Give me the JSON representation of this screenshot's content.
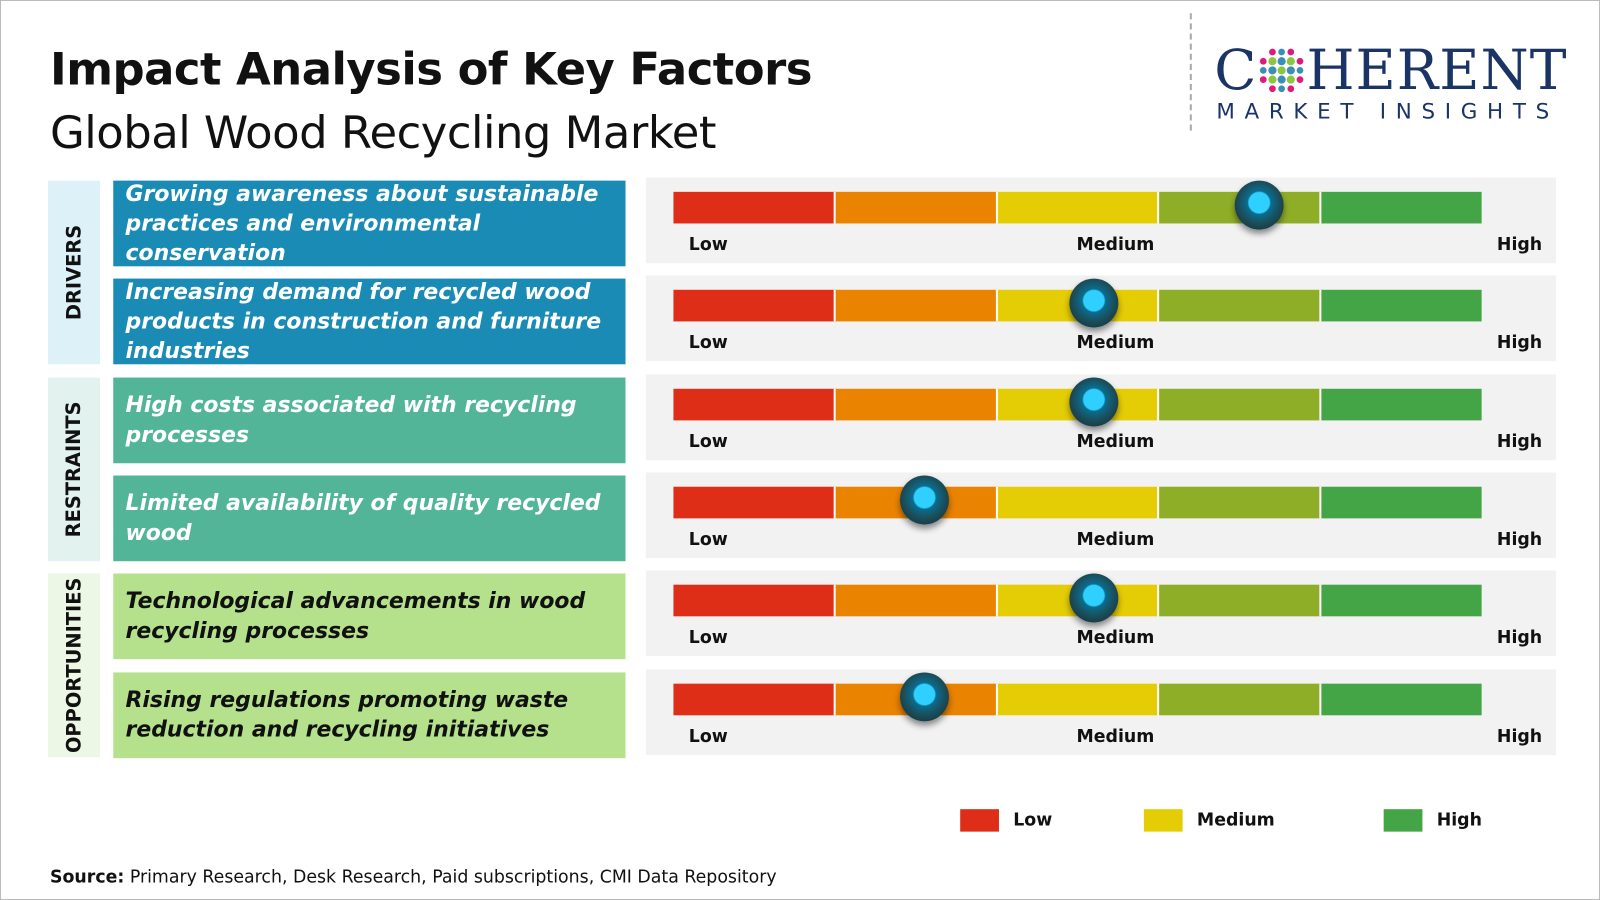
{
  "title": "Impact Analysis of Key Factors",
  "subtitle": "Global Wood Recycling Market",
  "logo": {
    "top": "COHERENT",
    "bottom": "MARKET INSIGHTS"
  },
  "chart_data": {
    "type": "gauge-table",
    "scale_labels": [
      "Low",
      "Medium",
      "High"
    ],
    "segment_colors": [
      "#de2e18",
      "#ea8300",
      "#e5cd06",
      "#8fae27",
      "#43a546"
    ],
    "categories": [
      {
        "name": "DRIVERS",
        "bg": "#ddf1f9",
        "factor_bg": "#1a8bb5",
        "text_color": "#ffffff"
      },
      {
        "name": "RESTRAINTS",
        "bg": "#e2f3ef",
        "factor_bg": "#52b597",
        "text_color": "#ffffff"
      },
      {
        "name": "OPPORTUNITIES",
        "bg": "#edf7e6",
        "factor_bg": "#b5e18c",
        "text_color": "#111111"
      }
    ],
    "rows": [
      {
        "category": 0,
        "factor": "Growing awareness about sustainable practices and environmental conservation",
        "impact": 0.725
      },
      {
        "category": 0,
        "factor": "Increasing demand for recycled wood products in construction and furniture industries",
        "impact": 0.52
      },
      {
        "category": 1,
        "factor": "High costs associated with recycling processes",
        "impact": 0.52
      },
      {
        "category": 1,
        "factor": "Limited availability of quality recycled wood",
        "impact": 0.31
      },
      {
        "category": 2,
        "factor": "Technological advancements in wood recycling processes",
        "impact": 0.52
      },
      {
        "category": 2,
        "factor": "Rising regulations promoting waste reduction and recycling initiatives",
        "impact": 0.31
      }
    ],
    "legend": [
      {
        "label": "Low",
        "color": "#de2e18"
      },
      {
        "label": "Medium",
        "color": "#e5cd06"
      },
      {
        "label": "High",
        "color": "#43a546"
      }
    ]
  },
  "source": {
    "label": "Source:",
    "text": " Primary Research, Desk Research, Paid subscriptions, CMI Data Repository"
  }
}
